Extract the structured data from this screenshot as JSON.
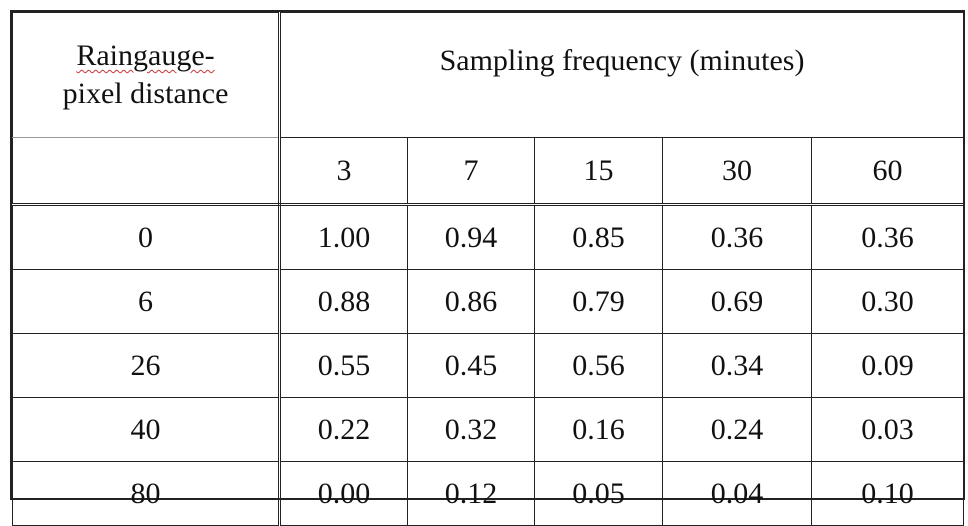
{
  "table": {
    "row_header_line1": "Raingauge-",
    "row_header_line2": "pixel distance",
    "group_header": "Sampling frequency (minutes)",
    "columns": [
      "3",
      "7",
      "15",
      "30",
      "60"
    ],
    "rows": [
      {
        "distance": "0",
        "values": [
          "1.00",
          "0.94",
          "0.85",
          "0.36",
          "0.36"
        ]
      },
      {
        "distance": "6",
        "values": [
          "0.88",
          "0.86",
          "0.79",
          "0.69",
          "0.30"
        ]
      },
      {
        "distance": "26",
        "values": [
          "0.55",
          "0.45",
          "0.56",
          "0.34",
          "0.09"
        ]
      },
      {
        "distance": "40",
        "values": [
          "0.22",
          "0.32",
          "0.16",
          "0.24",
          "0.03"
        ]
      },
      {
        "distance": "80",
        "values": [
          "0.00",
          "0.12",
          "0.05",
          "0.04",
          "0.10"
        ]
      }
    ]
  }
}
